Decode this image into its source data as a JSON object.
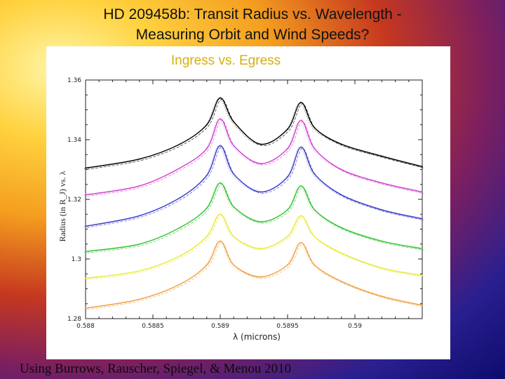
{
  "slide": {
    "title_line1": "HD 209458b: Transit Radius vs. Wavelength -",
    "title_line2": "Measuring Orbit and Wind Speeds?",
    "footer": "Using Burrows, Rauscher, Spiegel, & Menou  2010"
  },
  "chart_data": {
    "type": "line",
    "subtitle": "Ingress vs. Egress",
    "xlabel": "λ (microns)",
    "ylabel": "Radius (in R_J) vs. λ",
    "xlim": [
      0.588,
      0.5905
    ],
    "ylim": [
      1.28,
      1.36
    ],
    "xticks": [
      "0.588",
      "0.5885",
      "0.589",
      "0.5895",
      "0.59"
    ],
    "yticks": [
      "1.28",
      "1.3",
      "1.32",
      "1.34",
      "1.36"
    ],
    "grid": false,
    "legend": "none",
    "line_centers_microns": [
      0.589,
      0.5896
    ],
    "series": [
      {
        "color": "#000000",
        "x": [
          0.588,
          0.5884,
          0.5887,
          0.5889,
          0.589,
          0.5891,
          0.5893,
          0.5895,
          0.5896,
          0.5897,
          0.5899,
          0.5902,
          0.5905
        ],
        "y": [
          1.3305,
          1.3335,
          1.3385,
          1.345,
          1.354,
          1.346,
          1.3385,
          1.3435,
          1.3525,
          1.344,
          1.3385,
          1.3345,
          1.331
        ]
      },
      {
        "color": "#d040d0",
        "x": [
          0.588,
          0.5884,
          0.5887,
          0.5889,
          0.589,
          0.5891,
          0.5893,
          0.5895,
          0.5896,
          0.5897,
          0.5899,
          0.5902,
          0.5905
        ],
        "y": [
          1.3215,
          1.3245,
          1.3305,
          1.337,
          1.347,
          1.338,
          1.332,
          1.337,
          1.3465,
          1.337,
          1.33,
          1.3255,
          1.3225
        ]
      },
      {
        "color": "#3838c8",
        "x": [
          0.588,
          0.5884,
          0.5887,
          0.5889,
          0.589,
          0.5891,
          0.5893,
          0.5895,
          0.5896,
          0.5897,
          0.5899,
          0.5902,
          0.5905
        ],
        "y": [
          1.311,
          1.3145,
          1.3205,
          1.328,
          1.338,
          1.3285,
          1.3225,
          1.3275,
          1.3375,
          1.3285,
          1.3215,
          1.3165,
          1.3135
        ]
      },
      {
        "color": "#30c030",
        "x": [
          0.588,
          0.5884,
          0.5887,
          0.5889,
          0.589,
          0.5891,
          0.5893,
          0.5895,
          0.5896,
          0.5897,
          0.5899,
          0.5902,
          0.5905
        ],
        "y": [
          1.3025,
          1.305,
          1.3105,
          1.317,
          1.3255,
          1.3175,
          1.3125,
          1.3165,
          1.3245,
          1.3165,
          1.3105,
          1.306,
          1.3035
        ]
      },
      {
        "color": "#e8e838",
        "x": [
          0.588,
          0.5884,
          0.5887,
          0.5889,
          0.589,
          0.5891,
          0.5893,
          0.5895,
          0.5896,
          0.5897,
          0.5899,
          0.5902,
          0.5905
        ],
        "y": [
          1.2935,
          1.296,
          1.301,
          1.3075,
          1.315,
          1.3075,
          1.3035,
          1.3075,
          1.3145,
          1.3075,
          1.302,
          1.297,
          1.2945
        ]
      },
      {
        "color": "#f0a040",
        "x": [
          0.588,
          0.5884,
          0.5887,
          0.5889,
          0.589,
          0.5891,
          0.5893,
          0.5895,
          0.5896,
          0.5897,
          0.5899,
          0.5902,
          0.5905
        ],
        "y": [
          1.2835,
          1.2865,
          1.2915,
          1.298,
          1.306,
          1.298,
          1.294,
          1.298,
          1.3055,
          1.298,
          1.2925,
          1.2875,
          1.2845
        ]
      }
    ]
  }
}
